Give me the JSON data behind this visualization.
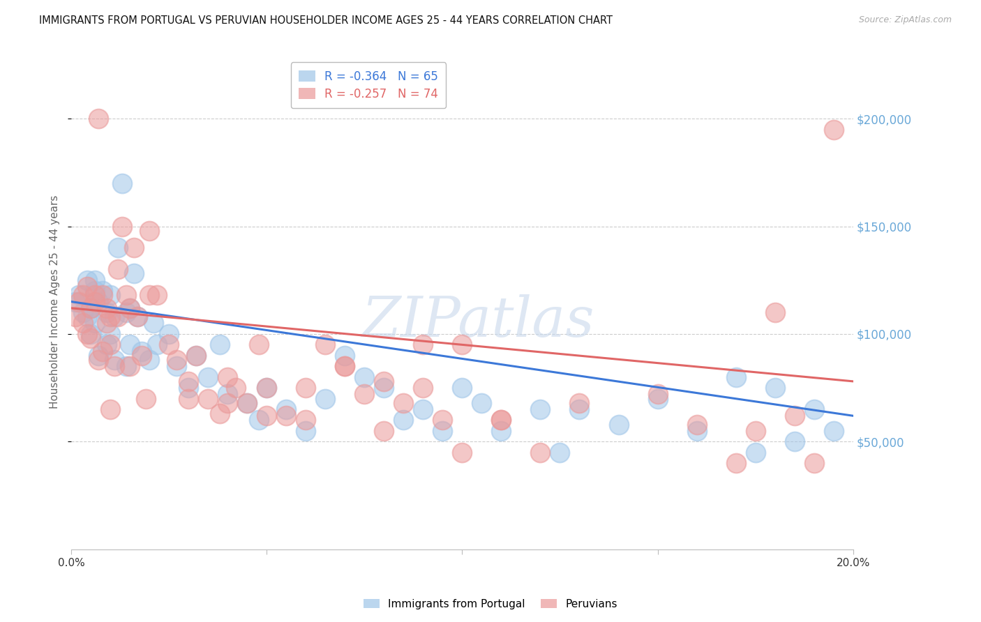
{
  "title": "IMMIGRANTS FROM PORTUGAL VS PERUVIAN HOUSEHOLDER INCOME AGES 25 - 44 YEARS CORRELATION CHART",
  "source": "Source: ZipAtlas.com",
  "ylabel": "Householder Income Ages 25 - 44 years",
  "xlim": [
    0.0,
    0.2
  ],
  "ylim": [
    0,
    230000
  ],
  "yticks": [
    50000,
    100000,
    150000,
    200000
  ],
  "ytick_labels": [
    "$50,000",
    "$100,000",
    "$150,000",
    "$200,000"
  ],
  "xticks": [
    0.0,
    0.05,
    0.1,
    0.15,
    0.2
  ],
  "xtick_labels": [
    "0.0%",
    "",
    "",
    "",
    "20.0%"
  ],
  "legend1_label": "R = -0.364   N = 65",
  "legend2_label": "R = -0.257   N = 74",
  "blue_color": "#9fc5e8",
  "pink_color": "#ea9999",
  "blue_line_color": "#3c78d8",
  "pink_line_color": "#e06666",
  "blue_scatter_x": [
    0.001,
    0.002,
    0.003,
    0.004,
    0.004,
    0.005,
    0.005,
    0.006,
    0.006,
    0.007,
    0.007,
    0.008,
    0.009,
    0.009,
    0.01,
    0.01,
    0.011,
    0.011,
    0.012,
    0.013,
    0.014,
    0.014,
    0.015,
    0.015,
    0.016,
    0.017,
    0.018,
    0.02,
    0.021,
    0.022,
    0.025,
    0.027,
    0.03,
    0.032,
    0.035,
    0.038,
    0.04,
    0.045,
    0.048,
    0.05,
    0.055,
    0.06,
    0.065,
    0.07,
    0.075,
    0.08,
    0.085,
    0.09,
    0.095,
    0.1,
    0.105,
    0.11,
    0.12,
    0.125,
    0.13,
    0.14,
    0.15,
    0.16,
    0.17,
    0.175,
    0.18,
    0.185,
    0.19,
    0.195,
    0.006
  ],
  "blue_scatter_y": [
    115000,
    118000,
    110000,
    108000,
    125000,
    112000,
    100000,
    120000,
    105000,
    90000,
    115000,
    120000,
    95000,
    110000,
    118000,
    100000,
    88000,
    108000,
    140000,
    170000,
    110000,
    85000,
    112000,
    95000,
    128000,
    108000,
    92000,
    88000,
    105000,
    95000,
    100000,
    85000,
    75000,
    90000,
    80000,
    95000,
    72000,
    68000,
    60000,
    75000,
    65000,
    55000,
    70000,
    90000,
    80000,
    75000,
    60000,
    65000,
    55000,
    75000,
    68000,
    55000,
    65000,
    45000,
    65000,
    58000,
    70000,
    55000,
    80000,
    45000,
    75000,
    50000,
    65000,
    55000,
    125000
  ],
  "pink_scatter_x": [
    0.001,
    0.002,
    0.003,
    0.003,
    0.004,
    0.004,
    0.005,
    0.005,
    0.006,
    0.006,
    0.007,
    0.008,
    0.008,
    0.009,
    0.009,
    0.01,
    0.01,
    0.011,
    0.012,
    0.012,
    0.013,
    0.014,
    0.015,
    0.015,
    0.016,
    0.017,
    0.018,
    0.019,
    0.02,
    0.022,
    0.025,
    0.027,
    0.03,
    0.032,
    0.035,
    0.038,
    0.04,
    0.042,
    0.045,
    0.048,
    0.05,
    0.055,
    0.06,
    0.065,
    0.07,
    0.075,
    0.08,
    0.085,
    0.09,
    0.095,
    0.1,
    0.11,
    0.12,
    0.13,
    0.15,
    0.16,
    0.17,
    0.175,
    0.18,
    0.185,
    0.19,
    0.195,
    0.01,
    0.02,
    0.03,
    0.04,
    0.05,
    0.06,
    0.07,
    0.08,
    0.09,
    0.1,
    0.11,
    0.007
  ],
  "pink_scatter_y": [
    108000,
    115000,
    105000,
    118000,
    100000,
    122000,
    112000,
    98000,
    115000,
    118000,
    88000,
    92000,
    118000,
    105000,
    112000,
    108000,
    95000,
    85000,
    130000,
    108000,
    150000,
    118000,
    112000,
    85000,
    140000,
    108000,
    90000,
    70000,
    118000,
    118000,
    95000,
    88000,
    78000,
    90000,
    70000,
    63000,
    80000,
    75000,
    68000,
    95000,
    75000,
    62000,
    75000,
    95000,
    85000,
    72000,
    78000,
    68000,
    95000,
    60000,
    45000,
    60000,
    45000,
    68000,
    72000,
    58000,
    40000,
    55000,
    110000,
    62000,
    40000,
    195000,
    65000,
    148000,
    70000,
    68000,
    62000,
    60000,
    85000,
    55000,
    75000,
    95000,
    60000,
    200000
  ],
  "blue_trendline_x0": 0.0,
  "blue_trendline_y0": 115000,
  "blue_trendline_x1": 0.2,
  "blue_trendline_y1": 62000,
  "pink_trendline_x0": 0.0,
  "pink_trendline_y0": 112000,
  "pink_trendline_x1": 0.2,
  "pink_trendline_y1": 78000,
  "watermark": "ZIPatlas",
  "background_color": "#ffffff",
  "grid_color": "#cccccc",
  "right_tick_color": "#6aa8d8",
  "source_color": "#aaaaaa"
}
